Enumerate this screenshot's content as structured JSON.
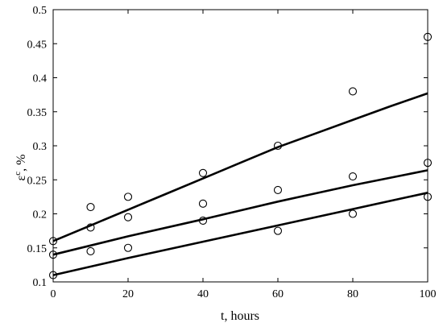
{
  "chart_data": {
    "type": "scatter",
    "title": "",
    "xlabel": "t, hours",
    "ylabel_main": "ε",
    "ylabel_superscript": "c",
    "ylabel_suffix": ", %",
    "xlim": [
      0,
      100
    ],
    "ylim": [
      0.1,
      0.5
    ],
    "x_ticks": [
      0,
      20,
      40,
      60,
      80,
      100
    ],
    "y_ticks": [
      0.1,
      0.15,
      0.2,
      0.25,
      0.3,
      0.35,
      0.4,
      0.45,
      0.5
    ],
    "x_tick_labels": [
      "0",
      "20",
      "40",
      "60",
      "80",
      "100"
    ],
    "y_tick_labels": [
      "0.1",
      "0.15",
      "0.2",
      "0.25",
      "0.3",
      "0.35",
      "0.4",
      "0.45",
      "0.5"
    ],
    "grid": false,
    "legend": "none",
    "series": [
      {
        "points": [
          [
            0,
            0.16
          ],
          [
            10,
            0.21
          ],
          [
            20,
            0.225
          ],
          [
            40,
            0.26
          ],
          [
            60,
            0.3
          ],
          [
            80,
            0.38
          ],
          [
            100,
            0.46
          ]
        ],
        "fit": [
          [
            0,
            0.16
          ],
          [
            10,
            0.183
          ],
          [
            20,
            0.206
          ],
          [
            30,
            0.229
          ],
          [
            40,
            0.252
          ],
          [
            50,
            0.275
          ],
          [
            60,
            0.298
          ],
          [
            70,
            0.318
          ],
          [
            80,
            0.338
          ],
          [
            90,
            0.358
          ],
          [
            100,
            0.377
          ]
        ]
      },
      {
        "points": [
          [
            0,
            0.14
          ],
          [
            10,
            0.18
          ],
          [
            20,
            0.195
          ],
          [
            40,
            0.215
          ],
          [
            60,
            0.235
          ],
          [
            80,
            0.255
          ],
          [
            100,
            0.275
          ]
        ],
        "fit": [
          [
            0,
            0.14
          ],
          [
            20,
            0.167
          ],
          [
            40,
            0.192
          ],
          [
            60,
            0.218
          ],
          [
            80,
            0.242
          ],
          [
            100,
            0.264
          ]
        ]
      },
      {
        "points": [
          [
            0,
            0.11
          ],
          [
            10,
            0.145
          ],
          [
            20,
            0.15
          ],
          [
            40,
            0.19
          ],
          [
            60,
            0.175
          ],
          [
            80,
            0.2
          ],
          [
            100,
            0.225
          ]
        ],
        "fit": [
          [
            0,
            0.11
          ],
          [
            20,
            0.135
          ],
          [
            40,
            0.159
          ],
          [
            60,
            0.183
          ],
          [
            80,
            0.207
          ],
          [
            100,
            0.231
          ]
        ]
      }
    ]
  }
}
